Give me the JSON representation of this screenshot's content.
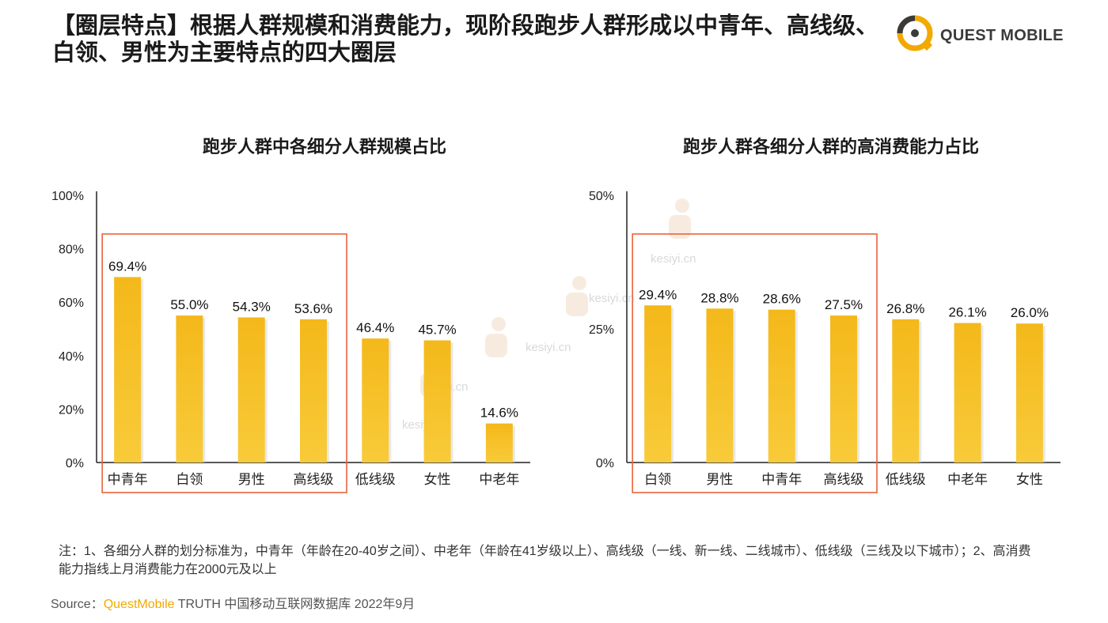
{
  "headline": "【圈层特点】根据人群规模和消费能力，现阶段跑步人群形成以中青年、高线级、白领、男性为主要特点的四大圈层",
  "logo": {
    "text": "QUEST MOBILE"
  },
  "colors": {
    "bar": "#F5BC1C",
    "highlight_box": "#E8643C",
    "axis": "#222222",
    "brand": "#F2A900"
  },
  "watermark": {
    "text": "kesiyi.cn"
  },
  "chart_data": [
    {
      "type": "bar",
      "title": "跑步人群中各细分人群规模占比",
      "categories": [
        "中青年",
        "白领",
        "男性",
        "高线级",
        "低线级",
        "女性",
        "中老年"
      ],
      "values": [
        69.4,
        55.0,
        54.3,
        53.6,
        46.4,
        45.7,
        14.6
      ],
      "value_labels": [
        "69.4%",
        "55.0%",
        "54.3%",
        "53.6%",
        "46.4%",
        "45.7%",
        "14.6%"
      ],
      "yticks": [
        "0%",
        "20%",
        "40%",
        "60%",
        "80%",
        "100%"
      ],
      "ytick_values": [
        0,
        20,
        40,
        60,
        80,
        100
      ],
      "ylim": [
        0,
        100
      ],
      "highlighted_count": 4,
      "grid": false
    },
    {
      "type": "bar",
      "title": "跑步人群各细分人群的高消费能力占比",
      "categories": [
        "白领",
        "男性",
        "中青年",
        "高线级",
        "低线级",
        "中老年",
        "女性"
      ],
      "values": [
        29.4,
        28.8,
        28.6,
        27.5,
        26.8,
        26.1,
        26.0
      ],
      "value_labels": [
        "29.4%",
        "28.8%",
        "28.6%",
        "27.5%",
        "26.8%",
        "26.1%",
        "26.0%"
      ],
      "yticks": [
        "0%",
        "25%",
        "50%"
      ],
      "ytick_values": [
        0,
        25,
        50
      ],
      "ylim": [
        0,
        50
      ],
      "highlighted_count": 4,
      "grid": false
    }
  ],
  "note": "注：1、各细分人群的划分标准为，中青年（年龄在20-40岁之间）、中老年（年龄在41岁级以上）、高线级（一线、新一线、二线城市）、低线级（三线及以下城市）；2、高消费能力指线上月消费能力在2000元及以上",
  "source": {
    "label": "Source：",
    "brand": "QuestMobile",
    "rest": " TRUTH 中国移动互联网数据库 2022年9月"
  }
}
